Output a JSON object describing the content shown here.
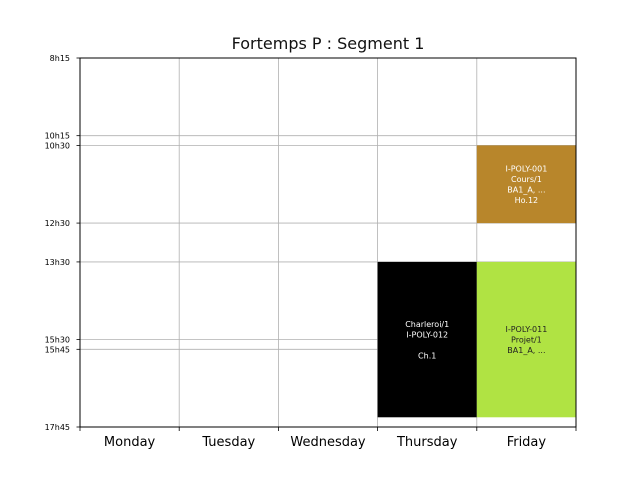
{
  "chart_data": {
    "type": "timetable",
    "title": "Fortemps P : Segment 1",
    "days": [
      "Monday",
      "Tuesday",
      "Wednesday",
      "Thursday",
      "Friday"
    ],
    "y_ticks": [
      "8h15",
      "10h15",
      "10h30",
      "12h30",
      "13h30",
      "15h30",
      "15h45",
      "17h45"
    ],
    "time_range": [
      "8h15",
      "17h45"
    ],
    "grid": true,
    "events": [
      {
        "day": "Friday",
        "start": "10h30",
        "end": "12h30",
        "color": "#b8862b",
        "text_color": "#ffffff",
        "lines": [
          "I-POLY-001",
          "Cours/1",
          "BA1_A, ...",
          "Ho.12"
        ]
      },
      {
        "day": "Thursday",
        "start": "13h30",
        "end": "17h30",
        "color": "#000000",
        "text_color": "#ffffff",
        "lines": [
          "Charleroi/1",
          "I-POLY-012",
          "",
          "Ch.1"
        ]
      },
      {
        "day": "Friday",
        "start": "13h30",
        "end": "17h30",
        "color": "#b0e343",
        "text_color": "#222222",
        "lines": [
          "I-POLY-011",
          "Projet/1",
          "BA1_A, ..."
        ]
      }
    ]
  }
}
